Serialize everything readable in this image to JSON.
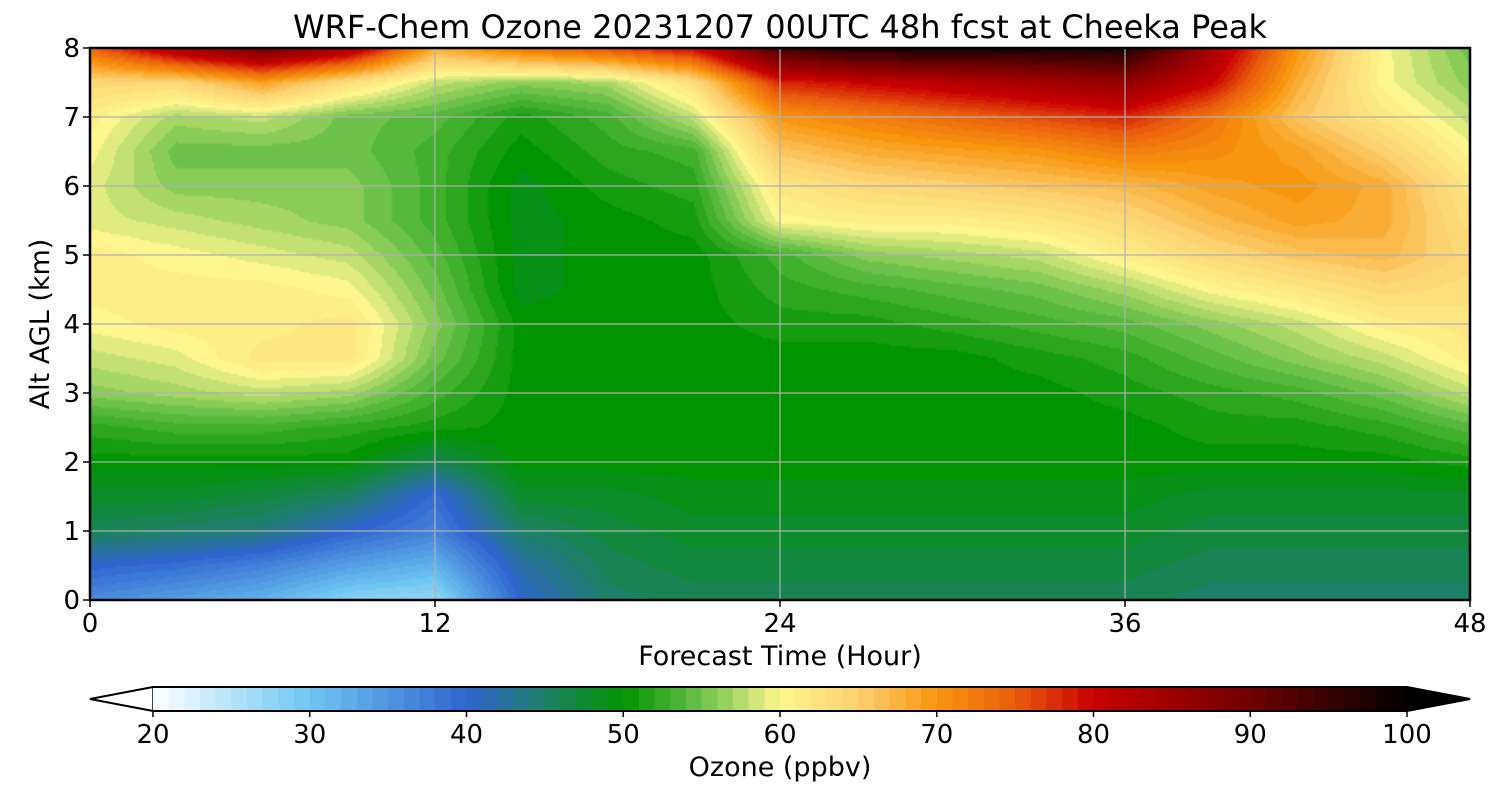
{
  "chart_data": {
    "type": "heatmap",
    "title": "WRF-Chem Ozone  20231207 00UTC 48h fcst at Cheeka Peak",
    "xlabel": "Forecast Time (Hour)",
    "ylabel": "Alt AGL (km)",
    "xlim": [
      0,
      48
    ],
    "ylim": [
      0,
      8
    ],
    "xticks": [
      "0",
      "12",
      "24",
      "36",
      "48"
    ],
    "yticks": [
      "0",
      "1",
      "2",
      "3",
      "4",
      "5",
      "6",
      "7",
      "8"
    ],
    "grid": true,
    "x_hours": [
      0,
      3,
      6,
      9,
      12,
      15,
      18,
      21,
      24,
      27,
      30,
      33,
      36,
      39,
      42,
      45,
      48
    ],
    "y_km": [
      0,
      0.5,
      1,
      1.5,
      2,
      2.5,
      3,
      3.5,
      4,
      4.5,
      5,
      5.5,
      6,
      6.5,
      7,
      7.5,
      8
    ],
    "z_ppbv": [
      [
        36,
        34,
        32,
        28,
        27,
        40,
        45,
        46,
        46,
        46,
        46,
        46,
        46,
        45,
        45,
        45,
        45
      ],
      [
        40,
        39,
        37,
        34,
        32,
        42,
        46,
        47,
        47,
        47,
        47,
        47,
        47,
        46,
        46,
        46,
        46
      ],
      [
        46,
        45,
        44,
        40,
        37,
        45,
        47,
        48,
        48,
        48,
        48,
        48,
        48,
        47,
        47,
        47,
        47
      ],
      [
        48,
        48,
        47,
        45,
        39,
        48,
        48,
        49,
        49,
        49,
        49,
        49,
        49,
        48,
        48,
        48,
        48
      ],
      [
        50,
        50,
        50,
        50,
        46,
        50,
        50,
        50,
        50,
        50,
        50,
        50,
        50,
        50,
        50,
        50,
        51
      ],
      [
        52,
        53,
        53,
        52,
        51,
        50,
        50,
        50,
        50,
        50,
        50,
        50,
        50,
        51,
        51,
        52,
        54
      ],
      [
        56,
        57,
        58,
        57,
        53,
        50,
        50,
        50,
        50,
        50,
        50,
        50,
        51,
        52,
        53,
        55,
        58
      ],
      [
        58,
        59,
        62,
        62,
        55,
        50,
        50,
        50,
        50,
        50,
        50,
        51,
        52,
        54,
        56,
        58,
        61
      ],
      [
        60,
        61,
        61,
        62,
        56,
        50,
        50,
        50,
        51,
        51,
        52,
        53,
        54,
        56,
        58,
        61,
        62
      ],
      [
        61,
        61,
        61,
        60,
        55,
        49,
        50,
        50,
        52,
        53,
        54,
        55,
        57,
        60,
        62,
        64,
        63
      ],
      [
        61,
        60,
        59,
        58,
        54,
        49,
        50,
        50,
        53,
        56,
        57,
        58,
        61,
        64,
        66,
        67,
        64
      ],
      [
        59,
        58,
        57,
        56,
        53,
        49,
        50,
        51,
        60,
        61,
        61,
        62,
        64,
        67,
        69,
        68,
        63
      ],
      [
        59,
        56,
        56,
        56,
        53,
        49,
        51,
        52,
        62,
        64,
        65,
        66,
        67,
        69,
        70,
        68,
        62
      ],
      [
        60,
        55,
        55,
        55,
        53,
        50,
        52,
        53,
        66,
        68,
        69,
        70,
        72,
        71,
        69,
        65,
        60
      ],
      [
        61,
        57,
        58,
        55,
        54,
        51,
        53,
        58,
        70,
        72,
        74,
        76,
        78,
        73,
        66,
        62,
        58
      ],
      [
        64,
        64,
        69,
        63,
        58,
        56,
        57,
        63,
        78,
        80,
        82,
        84,
        86,
        80,
        68,
        60,
        56
      ],
      [
        74,
        84,
        90,
        84,
        68,
        73,
        76,
        80,
        94,
        98,
        98,
        98,
        98,
        84,
        70,
        60,
        55
      ]
    ]
  },
  "colorbar": {
    "label": "Ozone  (ppbv)",
    "min": 20,
    "max": 100,
    "ticks": [
      "20",
      "30",
      "40",
      "50",
      "60",
      "70",
      "80",
      "90",
      "100"
    ],
    "extend": "both"
  },
  "colors": {
    "stops": [
      [
        20,
        "#ffffff"
      ],
      [
        30,
        "#6ec6f2"
      ],
      [
        40,
        "#3064cf"
      ],
      [
        45,
        "#1e8068"
      ],
      [
        50,
        "#009400"
      ],
      [
        55,
        "#6cc24a"
      ],
      [
        60,
        "#fdf68e"
      ],
      [
        65,
        "#fdd070"
      ],
      [
        70,
        "#f8960e"
      ],
      [
        75,
        "#ea5c0d"
      ],
      [
        80,
        "#c80000"
      ],
      [
        90,
        "#700000"
      ],
      [
        100,
        "#000000"
      ]
    ],
    "grid": "#b0b0b0"
  }
}
